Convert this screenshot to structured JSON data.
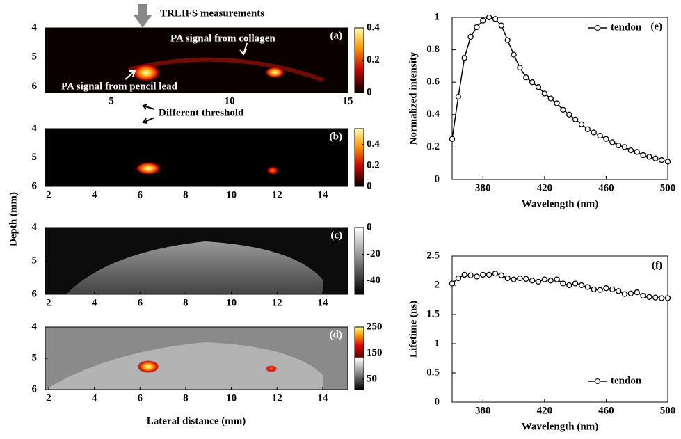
{
  "figure": {
    "ylabel": "Depth (mm)",
    "xlabel": "Lateral distance (mm)"
  },
  "chart_data": [
    {
      "type": "image",
      "label": "(a)",
      "colormap": "hot",
      "xlim": [
        2.2,
        15
      ],
      "ylim": [
        4,
        6.2
      ],
      "xticks": [
        5,
        10,
        15
      ],
      "yticks": [
        4,
        5,
        6
      ],
      "clim": [
        0,
        0.4
      ],
      "cticks": [
        0.4,
        0.2,
        0
      ],
      "annotations": [
        "TRLIFS measurements",
        "PA signal from collagen",
        "PA signal from pencil lead",
        "Different threshold"
      ]
    },
    {
      "type": "image",
      "label": "(b)",
      "colormap": "hot",
      "xlim": [
        1.85,
        15.1
      ],
      "ylim": [
        4,
        6
      ],
      "xticks": [
        2,
        4,
        6,
        8,
        10,
        12,
        14
      ],
      "yticks": [
        4,
        5,
        6
      ],
      "clim": [
        0,
        0.55
      ],
      "cticks": [
        0.4,
        0.2,
        0
      ]
    },
    {
      "type": "image",
      "label": "(c)",
      "colormap": "gray",
      "xlim": [
        1.85,
        15.1
      ],
      "ylim": [
        4,
        6
      ],
      "xticks": [
        2,
        4,
        6,
        8,
        10,
        12,
        14
      ],
      "yticks": [
        4,
        5,
        6
      ],
      "clim": [
        -50,
        0
      ],
      "cticks": [
        0,
        -20,
        -40
      ]
    },
    {
      "type": "image",
      "label": "(d)",
      "colormap": "overlay",
      "xlim": [
        1.85,
        15.1
      ],
      "ylim": [
        4,
        6
      ],
      "xticks": [
        2,
        4,
        6,
        8,
        10,
        12,
        14
      ],
      "yticks": [
        4,
        5,
        6
      ],
      "clim": [
        10,
        250
      ],
      "cticks": [
        250,
        150,
        50
      ]
    },
    {
      "type": "line",
      "label": "(e)",
      "xlabel": "Wavelength (nm)",
      "ylabel": "Normalized intensity",
      "xlim": [
        360,
        500
      ],
      "ylim": [
        0,
        1
      ],
      "xticks": [
        380,
        420,
        460,
        500
      ],
      "yticks": [
        0,
        0.2,
        0.4,
        0.6,
        0.8,
        1
      ],
      "legend": "upper right",
      "x": [
        360,
        364,
        368,
        372,
        376,
        380,
        384,
        388,
        392,
        396,
        400,
        404,
        408,
        412,
        416,
        420,
        424,
        428,
        432,
        436,
        440,
        444,
        448,
        452,
        456,
        460,
        464,
        468,
        472,
        476,
        480,
        484,
        488,
        492,
        496,
        500
      ],
      "series": [
        {
          "name": "tendon",
          "color": "#000000",
          "values": [
            0.25,
            0.51,
            0.75,
            0.88,
            0.94,
            0.98,
            1.0,
            0.99,
            0.95,
            0.86,
            0.77,
            0.69,
            0.63,
            0.6,
            0.57,
            0.53,
            0.5,
            0.47,
            0.43,
            0.4,
            0.37,
            0.34,
            0.31,
            0.29,
            0.27,
            0.25,
            0.23,
            0.21,
            0.2,
            0.18,
            0.17,
            0.15,
            0.14,
            0.13,
            0.12,
            0.11
          ]
        }
      ]
    },
    {
      "type": "line",
      "label": "(f)",
      "xlabel": "Wavelength (nm)",
      "ylabel": "Lifetime (ns)",
      "xlim": [
        360,
        500
      ],
      "ylim": [
        0,
        2.5
      ],
      "xticks": [
        380,
        420,
        460,
        500
      ],
      "yticks": [
        0,
        0.5,
        1,
        1.5,
        2,
        2.5
      ],
      "legend": "lower right",
      "x": [
        360,
        364,
        368,
        372,
        376,
        380,
        384,
        388,
        392,
        396,
        400,
        404,
        408,
        412,
        416,
        420,
        424,
        428,
        432,
        436,
        440,
        444,
        448,
        452,
        456,
        460,
        464,
        468,
        472,
        476,
        480,
        484,
        488,
        492,
        496,
        500
      ],
      "series": [
        {
          "name": "tendon",
          "color": "#000000",
          "values": [
            2.03,
            2.12,
            2.18,
            2.17,
            2.15,
            2.18,
            2.18,
            2.2,
            2.17,
            2.12,
            2.1,
            2.12,
            2.11,
            2.08,
            2.06,
            2.1,
            2.08,
            2.1,
            2.03,
            2.0,
            2.03,
            2.0,
            1.97,
            1.93,
            1.92,
            1.95,
            1.93,
            1.9,
            1.85,
            1.86,
            1.88,
            1.82,
            1.8,
            1.79,
            1.78,
            1.78
          ]
        }
      ]
    }
  ]
}
